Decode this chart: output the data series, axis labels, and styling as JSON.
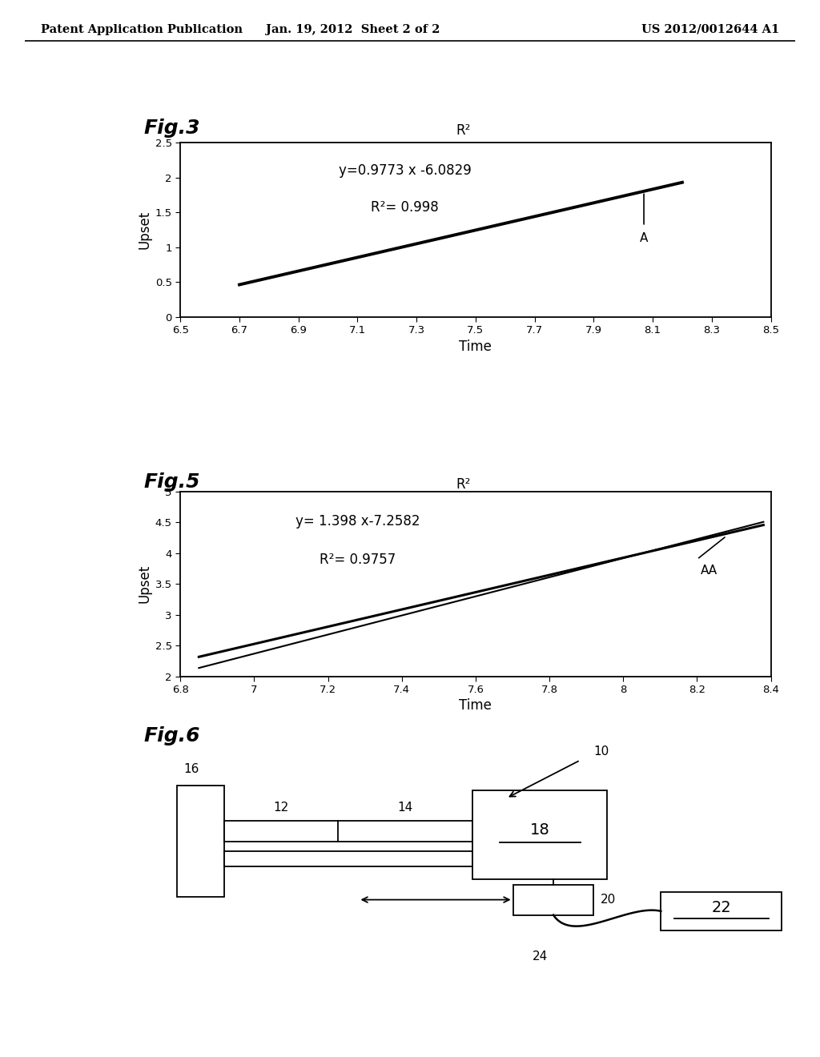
{
  "header_left": "Patent Application Publication",
  "header_center": "Jan. 19, 2012  Sheet 2 of 2",
  "header_right": "US 2012/0012644 A1",
  "fig3": {
    "title": "Fig.3",
    "subtitle": "R²",
    "equation": "y=0.9773 x -6.0829",
    "r2": "R²= 0.998",
    "annotation": "A",
    "xlabel": "Time",
    "ylabel": "Upset",
    "xlim": [
      6.5,
      8.5
    ],
    "ylim": [
      0,
      2.5
    ],
    "xticks": [
      6.5,
      6.7,
      6.9,
      7.1,
      7.3,
      7.5,
      7.7,
      7.9,
      8.1,
      8.3,
      8.5
    ],
    "yticks": [
      0,
      0.5,
      1.0,
      1.5,
      2.0,
      2.5
    ],
    "slope": 0.9773,
    "intercept": -6.0829,
    "x_start": 6.7,
    "x_end": 8.2
  },
  "fig5": {
    "title": "Fig.5",
    "subtitle": "R²",
    "equation": "y= 1.398 x-7.2582",
    "r2": "R²= 0.9757",
    "annotation": "AA",
    "xlabel": "Time",
    "ylabel": "Upset",
    "xlim": [
      6.8,
      8.4
    ],
    "ylim": [
      2.0,
      5.0
    ],
    "xticks": [
      6.8,
      7.0,
      7.2,
      7.4,
      7.6,
      7.8,
      8.0,
      8.2,
      8.4
    ],
    "yticks": [
      2.0,
      2.5,
      3.0,
      3.5,
      4.0,
      4.5,
      5.0
    ],
    "slope": 1.398,
    "intercept": -7.2582,
    "x_start": 6.85,
    "x_end": 8.38,
    "curve_x_start": 6.85,
    "curve_x_end": 8.38,
    "curve_slope": 1.25,
    "curve_intercept": -6.45
  },
  "bg_color": "#ffffff",
  "line_color": "#000000",
  "text_color": "#000000"
}
